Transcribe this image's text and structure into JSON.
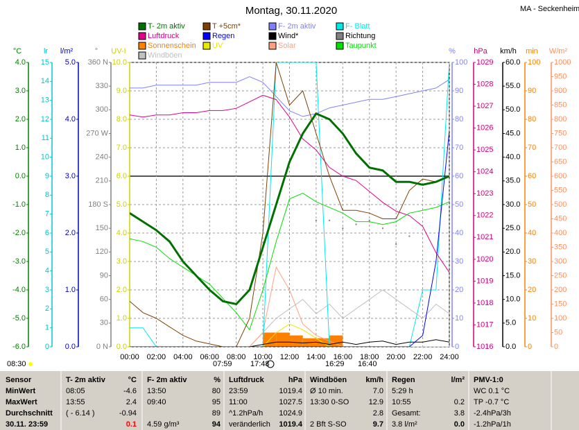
{
  "chart_data": {
    "type": "line",
    "title": "Montag, 30.11.2020",
    "station": "MA - Seckenheim",
    "x": [
      0,
      1,
      2,
      3,
      4,
      5,
      6,
      7,
      8,
      9,
      10,
      11,
      12,
      13,
      14,
      15,
      16,
      17,
      18,
      19,
      20,
      21,
      22,
      23,
      24
    ],
    "xlim": [
      0,
      24
    ],
    "xticks": [
      {
        "value": 0,
        "label": "00:00"
      },
      {
        "value": 2,
        "label": "02:00"
      },
      {
        "value": 4,
        "label": "04:00"
      },
      {
        "value": 6,
        "label": "06:00"
      },
      {
        "value": 8,
        "label": "08:00"
      },
      {
        "value": 10,
        "label": "10:00"
      },
      {
        "value": 12,
        "label": "12:00"
      },
      {
        "value": 14,
        "label": "14:00"
      },
      {
        "value": 16,
        "label": "16:00"
      },
      {
        "value": 18,
        "label": "18:00"
      },
      {
        "value": 20,
        "label": "20:00"
      },
      {
        "value": 22,
        "label": "22:00"
      },
      {
        "value": 24,
        "label": "24:00"
      }
    ],
    "grid": true,
    "axes": [
      {
        "unit": "°C",
        "color": "#008000",
        "side": "left",
        "lim": [
          -6,
          4
        ],
        "ticks": [
          {
            "value": -6,
            "label": "-6.0"
          },
          {
            "value": -5,
            "label": "-5.0"
          },
          {
            "value": -4,
            "label": "-4.0"
          },
          {
            "value": -3,
            "label": "-3.0"
          },
          {
            "value": -2,
            "label": "-2.0"
          },
          {
            "value": -1,
            "label": "-1.0"
          },
          {
            "value": 0,
            "label": "0.0"
          },
          {
            "value": 1,
            "label": "1.0"
          },
          {
            "value": 2,
            "label": "2.0"
          },
          {
            "value": 3,
            "label": "3.0"
          },
          {
            "value": 4,
            "label": "4.0"
          }
        ]
      },
      {
        "unit": "lr",
        "color": "#00c8c8",
        "side": "left",
        "lim": [
          0,
          15
        ],
        "ticks": [
          0,
          1,
          2,
          3,
          4,
          5,
          6,
          7,
          8,
          9,
          10,
          11,
          12,
          13,
          14,
          15
        ]
      },
      {
        "unit": "l/m²",
        "color": "#0000c0",
        "side": "left",
        "lim": [
          0,
          5
        ],
        "ticks": [
          {
            "value": 0,
            "label": "0.0"
          },
          {
            "value": 1,
            "label": "1.0"
          },
          {
            "value": 2,
            "label": "2.0"
          },
          {
            "value": 3,
            "label": "3.0"
          },
          {
            "value": 4,
            "label": "4.0"
          },
          {
            "value": 5,
            "label": "5.0"
          }
        ]
      },
      {
        "unit": "°",
        "color": "#808080",
        "side": "left",
        "lim": [
          0,
          360
        ],
        "ticks": [
          {
            "value": 0,
            "label": "0 N"
          },
          30,
          60,
          90,
          120,
          150,
          {
            "value": 180,
            "label": "180 S"
          },
          210,
          240,
          {
            "value": 270,
            "label": "270 W"
          },
          300,
          330,
          {
            "value": 360,
            "label": "360 N"
          }
        ]
      },
      {
        "unit": "UV-I",
        "color": "#d0d000",
        "side": "left",
        "lim": [
          0,
          10
        ],
        "ticks": [
          {
            "value": 0,
            "label": "0.0"
          },
          {
            "value": 1,
            "label": "1.0"
          },
          {
            "value": 2,
            "label": "2.0"
          },
          {
            "value": 3,
            "label": "3.0"
          },
          {
            "value": 4,
            "label": "4.0"
          },
          {
            "value": 5,
            "label": "5.0"
          },
          {
            "value": 6,
            "label": "6.0"
          },
          {
            "value": 7,
            "label": "7.0"
          },
          {
            "value": 8,
            "label": "8.0"
          },
          {
            "value": 9,
            "label": "9.0"
          },
          {
            "value": 10,
            "label": "10.0"
          }
        ]
      },
      {
        "unit": "%",
        "color": "#8080ff",
        "side": "right",
        "lim": [
          0,
          100
        ],
        "ticks": [
          0,
          10,
          20,
          30,
          40,
          50,
          60,
          70,
          80,
          90,
          100
        ]
      },
      {
        "unit": "hPa",
        "color": "#d0007a",
        "side": "right",
        "lim": [
          1016,
          1029
        ],
        "ticks": [
          1016,
          1017,
          1018,
          1019,
          1020,
          1021,
          1022,
          1023,
          1024,
          1025,
          1026,
          1027,
          1028,
          1029
        ]
      },
      {
        "unit": "km/h",
        "color": "#000000",
        "side": "right",
        "lim": [
          0,
          60
        ],
        "ticks": [
          {
            "value": 0,
            "label": "0.0"
          },
          {
            "value": 5,
            "label": "5.0"
          },
          {
            "value": 10,
            "label": "10.0"
          },
          {
            "value": 15,
            "label": "15.0"
          },
          {
            "value": 20,
            "label": "20.0"
          },
          {
            "value": 25,
            "label": "25.0"
          },
          {
            "value": 30,
            "label": "30.0"
          },
          {
            "value": 35,
            "label": "35.0"
          },
          {
            "value": 40,
            "label": "40.0"
          },
          {
            "value": 45,
            "label": "45.0"
          },
          {
            "value": 50,
            "label": "50.0"
          },
          {
            "value": 55,
            "label": "55.0"
          },
          {
            "value": 60,
            "label": "60.0"
          }
        ]
      },
      {
        "unit": "min",
        "color": "#ff8000",
        "side": "right",
        "lim": [
          0,
          100
        ],
        "ticks": [
          0,
          10,
          20,
          30,
          40,
          50,
          60,
          70,
          80,
          90,
          100
        ]
      },
      {
        "unit": "W/m²",
        "color": "#ff9060",
        "side": "right",
        "lim": [
          0,
          1000
        ],
        "ticks": [
          0,
          50,
          100,
          150,
          200,
          250,
          300,
          350,
          400,
          450,
          500,
          550,
          600,
          650,
          700,
          750,
          800,
          850,
          900,
          950,
          1000
        ]
      }
    ],
    "series": [
      {
        "name": "T- 2m aktiv",
        "color": "#007000",
        "axis": 0,
        "kind": "line",
        "width": 3,
        "values": [
          -1.3,
          -1.6,
          -1.9,
          -2.3,
          -3.0,
          -3.5,
          -4.0,
          -4.4,
          -4.5,
          -4.0,
          -2.5,
          -1.0,
          0.5,
          1.5,
          2.2,
          2.0,
          1.5,
          0.8,
          0.3,
          0.2,
          -0.2,
          -0.2,
          -0.3,
          -0.2,
          0.0
        ]
      },
      {
        "name": "T +5cm*",
        "color": "#804000",
        "axis": 0,
        "kind": "line",
        "width": 1,
        "values": [
          -4.4,
          -4.8,
          -5.0,
          -5.3,
          -5.6,
          -5.8,
          -5.9,
          -6.0,
          -6.0,
          -5.0,
          -2.0,
          4.0,
          2.5,
          3.0,
          1.5,
          0.0,
          -1.2,
          -1.2,
          -1.3,
          -1.5,
          -1.5,
          -0.5,
          -0.1,
          -0.2,
          0.0
        ]
      },
      {
        "name": "F- 2m aktiv",
        "color": "#8080ff",
        "axis": 5,
        "kind": "line",
        "width": 1,
        "values": [
          91,
          91,
          92,
          92,
          92,
          92,
          93,
          93,
          93,
          95,
          93,
          88,
          83,
          81,
          82,
          84,
          85,
          86,
          87,
          87,
          88,
          89,
          90,
          91,
          94
        ]
      },
      {
        "name": "F- Blatt",
        "color": "#00e8e8",
        "axis": 1,
        "kind": "line",
        "width": 1,
        "values": [
          1,
          1,
          0,
          0,
          0,
          0,
          0,
          0,
          0,
          0,
          0,
          15,
          15,
          15,
          15,
          0,
          0,
          0,
          0,
          0,
          0,
          0,
          3,
          3,
          15
        ]
      },
      {
        "name": "Luftdruck",
        "color": "#e0008a",
        "axis": 6,
        "kind": "line",
        "width": 1,
        "values": [
          1026.6,
          1026.5,
          1026.6,
          1026.6,
          1026.7,
          1026.7,
          1026.8,
          1026.8,
          1026.9,
          1027.2,
          1027.5,
          1027.3,
          1026.5,
          1025.5,
          1025.0,
          1024.2,
          1023.8,
          1023.6,
          1023.1,
          1022.6,
          1022.2,
          1022.0,
          1021.5,
          1020.3,
          1019.4
        ]
      },
      {
        "name": "Regen",
        "color": "#0000ff",
        "axis": 2,
        "kind": "line",
        "width": 1,
        "values": [
          0,
          0,
          0,
          0,
          0,
          0,
          0,
          0,
          0,
          0,
          0,
          0,
          0,
          0,
          0,
          0,
          0,
          0,
          0,
          0,
          0,
          0,
          0.2,
          1.5,
          3.8
        ]
      },
      {
        "name": "Wind*",
        "color": "#000000",
        "axis": 7,
        "kind": "line",
        "width": 1,
        "values": [
          0,
          0,
          0,
          0,
          0,
          0,
          0,
          0,
          0,
          0,
          0.5,
          1,
          1,
          0.8,
          1,
          0.5,
          1,
          0.5,
          1,
          1.2,
          0.5,
          1,
          1,
          1.5,
          1
        ]
      },
      {
        "name": "Richtung",
        "color": "#808080",
        "axis": 3,
        "kind": "dots",
        "x": [
          14,
          15,
          16,
          17,
          18,
          19,
          20,
          21
        ],
        "values": [
          160,
          160,
          150,
          155,
          160,
          150,
          130,
          140
        ]
      },
      {
        "name": "Sonnenschein",
        "color": "#ff8000",
        "axis": 8,
        "kind": "bar",
        "values": [
          0,
          0,
          0,
          0,
          0,
          0,
          0,
          0,
          0,
          0,
          5,
          5,
          4,
          3,
          3,
          4,
          0,
          0,
          0,
          0,
          0,
          0,
          0,
          0,
          0
        ]
      },
      {
        "name": "UV",
        "color": "#e8e800",
        "axis": 4,
        "kind": "line",
        "width": 1,
        "values": [
          0,
          0,
          0,
          0,
          0,
          0,
          0,
          0,
          0,
          0,
          0,
          0.5,
          0.8,
          0.6,
          0.3,
          0,
          0,
          0,
          0,
          0,
          0,
          0,
          0,
          0,
          0
        ]
      },
      {
        "name": "Solar",
        "color": "#ffa080",
        "axis": 9,
        "kind": "line",
        "width": 1,
        "values": [
          0,
          0,
          0,
          0,
          0,
          0,
          0,
          0,
          0,
          0,
          50,
          280,
          200,
          80,
          40,
          20,
          0,
          0,
          0,
          0,
          0,
          0,
          0,
          0,
          0
        ]
      },
      {
        "name": "Taupunkt",
        "color": "#00e000",
        "axis": 0,
        "kind": "line",
        "width": 1,
        "values": [
          -2.2,
          -2.3,
          -2.5,
          -2.9,
          -3.2,
          -3.5,
          -3.8,
          -4.3,
          -4.8,
          -5.4,
          -4.0,
          -2.3,
          -0.8,
          -0.6,
          -0.9,
          -1.1,
          -1.3,
          -1.6,
          -1.6,
          -1.7,
          -1.6,
          -1.3,
          -1.2,
          -1.1,
          -0.9
        ]
      },
      {
        "name": "Windböen",
        "color": "#c0c0c0",
        "axis": 7,
        "kind": "line",
        "width": 1,
        "values": [
          0,
          0,
          0,
          0,
          0,
          0,
          0,
          0,
          0,
          0,
          3,
          6,
          8,
          10,
          7,
          9,
          6,
          8,
          10,
          12,
          10,
          8,
          6,
          9,
          7
        ]
      }
    ],
    "annotations": [
      "08:30",
      "07:59",
      "17:48",
      "16:29",
      "16:40"
    ]
  },
  "table": {
    "rows": [
      [
        "Sensor",
        "T- 2m aktiv",
        "°C",
        "F- 2m aktiv",
        "%",
        "Luftdruck",
        "hPa",
        "Windböen",
        "km/h",
        "Regen",
        "l/m²",
        "PMV-1:0"
      ],
      [
        "MinWert",
        "08:05",
        "-4.6",
        "13:50",
        "80",
        "23:59",
        "1019.4",
        "Ø 10 min.",
        "7.0",
        "5:29 h",
        null,
        "WC 0.1 °C"
      ],
      [
        "MaxWert",
        "13:55",
        "2.4",
        "09:40",
        "95",
        "11:00",
        "1027.5",
        "13:30    0-SO",
        "12.9",
        "10:55",
        "0.2",
        "TP -0.7 °C"
      ],
      [
        "Durchschnitt",
        "( - 6.14 )",
        "-0.94",
        null,
        "89",
        "^1.2hPa/h",
        "1024.9",
        null,
        "2.8",
        "Gesamt:",
        "3.8",
        "-2.4hPa/3h"
      ],
      [
        "30.11. 23:59",
        null,
        "0.1",
        "4.59 g/m³",
        "94",
        "veränderlich",
        "1019.4",
        "2 Bft S-SO",
        "9.7",
        "3.8 l/m²",
        "0.0",
        "-1.2hPa/1h"
      ]
    ]
  }
}
